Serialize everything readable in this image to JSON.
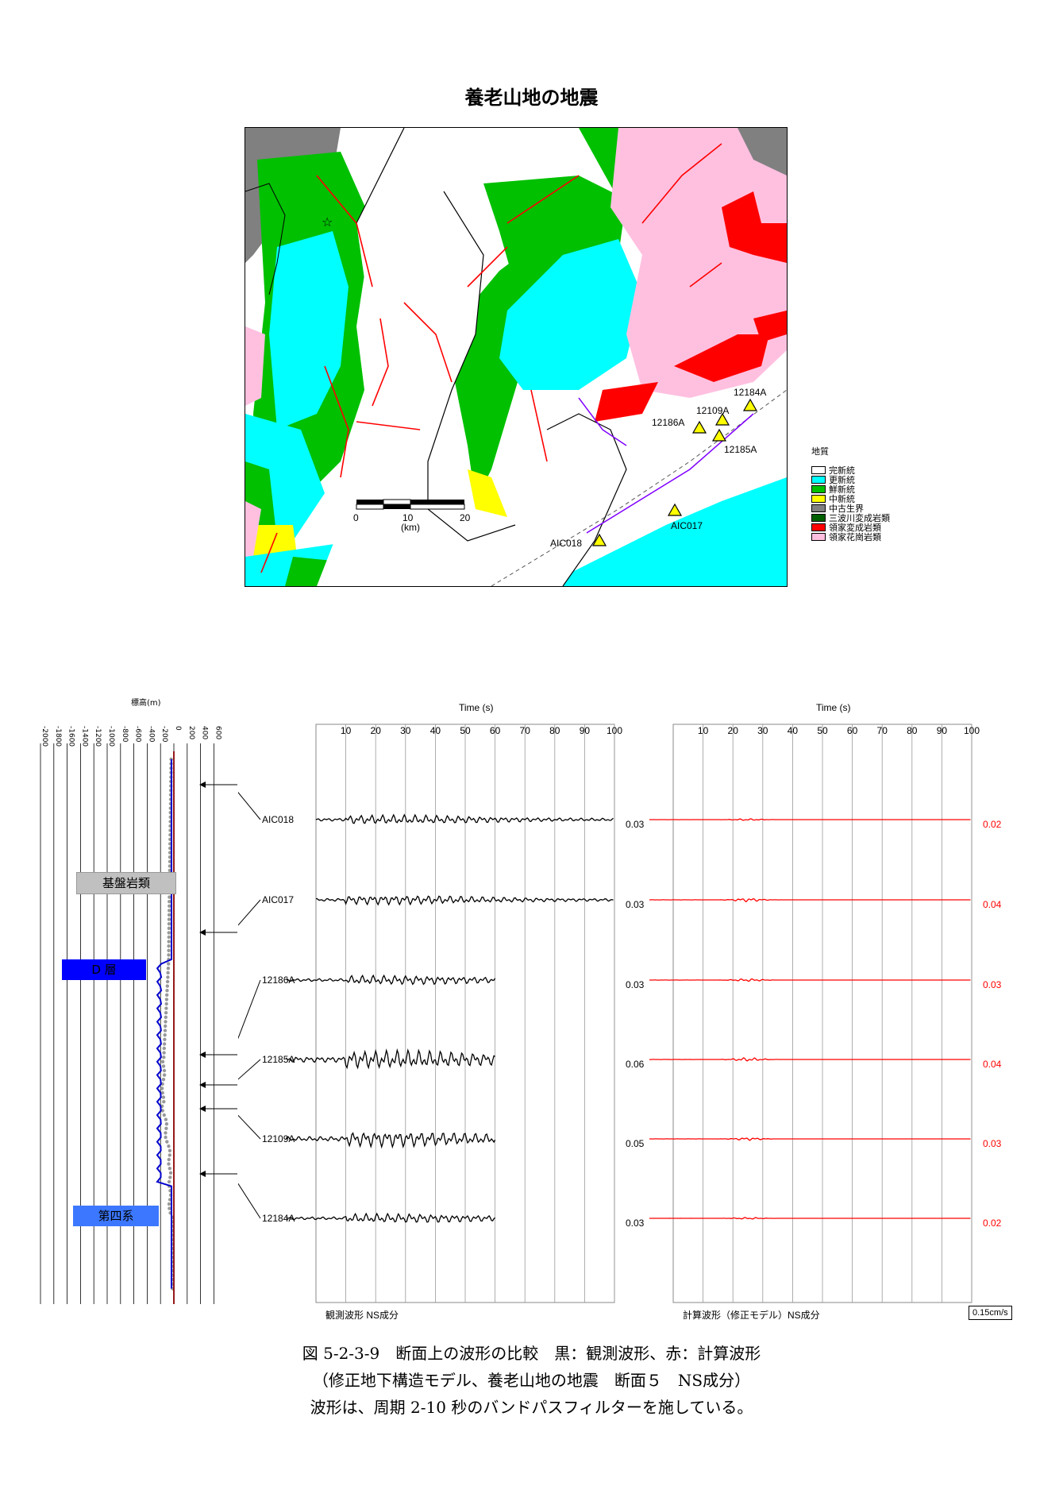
{
  "figure_title": "養老山地の地震",
  "map": {
    "scale_ticks": [
      "0",
      "10",
      "20"
    ],
    "scale_unit": "(km)",
    "stations": [
      "12184A",
      "12109A",
      "12186A",
      "12185A",
      "AIC017",
      "AIC018"
    ],
    "legend": {
      "title": "地質",
      "items": [
        {
          "label": "完新統",
          "color": "#ffffff"
        },
        {
          "label": "更新統",
          "color": "#00ffff"
        },
        {
          "label": "鮮新統",
          "color": "#00c000"
        },
        {
          "label": "中新統",
          "color": "#ffff00"
        },
        {
          "label": "中古生界",
          "color": "#808080"
        },
        {
          "label": "三波川変成岩類",
          "color": "#006000"
        },
        {
          "label": "領家変成岩類",
          "color": "#ff0000"
        },
        {
          "label": "領家花崗岩類",
          "color": "#ffc0e0"
        }
      ]
    }
  },
  "profile": {
    "axis_title": "標高(m)",
    "ticks": [
      "-2000",
      "-1800",
      "-1600",
      "-1400",
      "-1200",
      "-1000",
      "-800",
      "-600",
      "-400",
      "-200",
      "0",
      "200",
      "400",
      "600"
    ],
    "labels": {
      "bedrock": "基盤岩類",
      "d_layer": "D 層",
      "quaternary": "第四系"
    },
    "colors": {
      "bedrock": "#c0c0c0",
      "d_layer": "#0000ff",
      "quaternary": "#3c78ff"
    }
  },
  "chart_data": [
    {
      "type": "line",
      "title": "観測波形 NS成分",
      "xlabel": "Time (s)",
      "x_ticks": [
        10,
        20,
        30,
        40,
        50,
        60,
        70,
        80,
        90,
        100
      ],
      "xlim": [
        0,
        100
      ],
      "color": "#000000",
      "series": [
        {
          "name": "AIC018",
          "amplitude": 0.03,
          "end_time": 100
        },
        {
          "name": "AIC017",
          "amplitude": 0.03,
          "end_time": 100
        },
        {
          "name": "12186A",
          "amplitude": 0.03,
          "end_time": 60
        },
        {
          "name": "12185A",
          "amplitude": 0.06,
          "end_time": 60
        },
        {
          "name": "12109A",
          "amplitude": 0.05,
          "end_time": 60
        },
        {
          "name": "12184A",
          "amplitude": 0.03,
          "end_time": 60
        }
      ]
    },
    {
      "type": "line",
      "title": "計算波形（修正モデル）NS成分",
      "xlabel": "Time (s)",
      "x_ticks": [
        10,
        20,
        30,
        40,
        50,
        60,
        70,
        80,
        90,
        100
      ],
      "xlim": [
        0,
        100
      ],
      "color": "#ff0000",
      "series": [
        {
          "name": "AIC018",
          "amplitude": 0.02
        },
        {
          "name": "AIC017",
          "amplitude": 0.04
        },
        {
          "name": "12186A",
          "amplitude": 0.03
        },
        {
          "name": "12185A",
          "amplitude": 0.04
        },
        {
          "name": "12109A",
          "amplitude": 0.03
        },
        {
          "name": "12184A",
          "amplitude": 0.02
        }
      ]
    }
  ],
  "scale_label": "0.15cm/s",
  "caption": {
    "line1": "図 5-2-3-9　断面上の波形の比較　黒：観測波形、赤：計算波形",
    "line2": "（修正地下構造モデル、養老山地の地震　断面５　NS成分）",
    "line3": "波形は、周期 2-10 秒のバンドパスフィルターを施している。"
  }
}
